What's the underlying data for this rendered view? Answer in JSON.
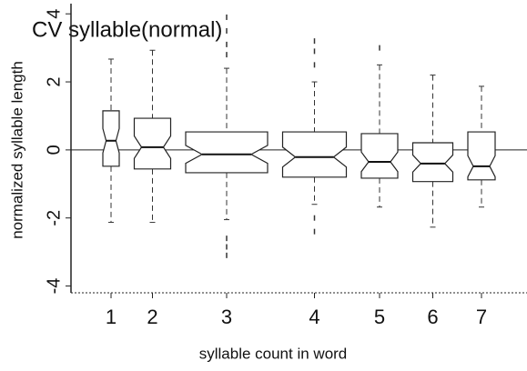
{
  "chart_data": {
    "type": "boxplot",
    "title": "CV syllable(normal)",
    "x_label": "syllable count in word",
    "y_label": "normalized syllable length",
    "categories": [
      "1",
      "2",
      "3",
      "4",
      "5",
      "6",
      "7"
    ],
    "box_widths": [
      18,
      40,
      90,
      70,
      40,
      44,
      30
    ],
    "boxes": [
      {
        "whisker_low": -2.13,
        "q1": -0.48,
        "median": 0.27,
        "q3": 1.15,
        "whisker_high": 2.67,
        "outliers": []
      },
      {
        "whisker_low": -2.13,
        "q1": -0.56,
        "median": 0.08,
        "q3": 0.93,
        "whisker_high": 2.93,
        "outliers": []
      },
      {
        "whisker_low": -2.05,
        "q1": -0.67,
        "median": -0.13,
        "q3": 0.53,
        "whisker_high": 2.4,
        "outliers": [
          -2.6,
          -2.85,
          -3.1,
          2.8,
          3.1,
          3.5,
          3.9
        ]
      },
      {
        "whisker_low": -1.6,
        "q1": -0.8,
        "median": -0.21,
        "q3": 0.53,
        "whisker_high": 2.0,
        "outliers": [
          -2.0,
          -2.4,
          2.5,
          2.9,
          3.2
        ]
      },
      {
        "whisker_low": -1.68,
        "q1": -0.83,
        "median": -0.35,
        "q3": 0.48,
        "whisker_high": 2.5,
        "outliers": [
          3.0
        ]
      },
      {
        "whisker_low": -2.27,
        "q1": -0.93,
        "median": -0.4,
        "q3": 0.21,
        "whisker_high": 2.2,
        "outliers": []
      },
      {
        "whisker_low": -1.68,
        "q1": -0.88,
        "median": -0.48,
        "q3": 0.53,
        "whisker_high": 1.87,
        "outliers": []
      }
    ],
    "hline": 0,
    "ylim": [
      -4.2,
      4.3
    ],
    "yticks": [
      -4,
      -2,
      0,
      2,
      4
    ]
  }
}
